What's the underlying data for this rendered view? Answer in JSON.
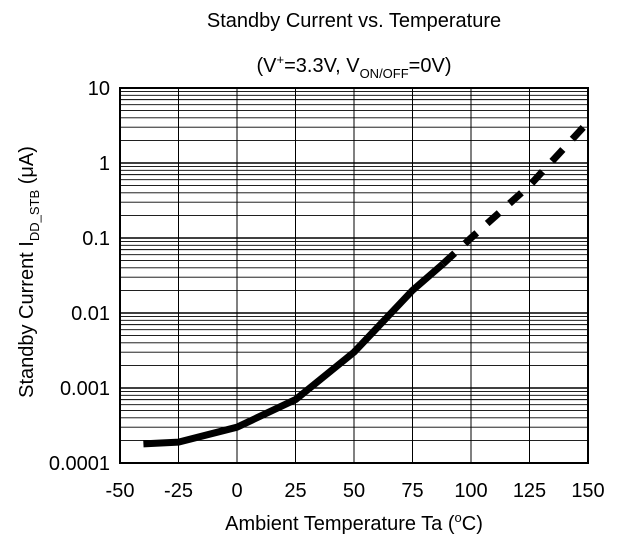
{
  "chart_data": {
    "type": "line",
    "title": "Standby Current vs. Temperature",
    "subtitle_parts": [
      "(V",
      "+",
      "=3.3V, V",
      "ON/OFF",
      "=0V)"
    ],
    "xlabel_parts": [
      "Ambient Temperature Ta  (",
      "o",
      "C)"
    ],
    "ylabel_parts": [
      "Standby Current  I",
      "DD_STB",
      "  (μA)"
    ],
    "x_ticks": [
      "-50",
      "-25",
      "0",
      "25",
      "50",
      "75",
      "100",
      "125",
      "150"
    ],
    "y_ticks": [
      "0.0001",
      "0.001",
      "0.01",
      "0.1",
      "1",
      "10"
    ],
    "xlim": [
      -50,
      150
    ],
    "ylim": [
      0.0001,
      10
    ],
    "yscale": "log",
    "grid": true,
    "series": [
      {
        "style": "solid",
        "x": [
          -40,
          -25,
          0,
          25,
          50,
          75,
          88
        ],
        "y": [
          0.00018,
          0.00019,
          0.0003,
          0.0007,
          0.003,
          0.02,
          0.045
        ]
      },
      {
        "style": "dashed",
        "x": [
          88,
          100,
          125,
          150
        ],
        "y": [
          0.045,
          0.1,
          0.5,
          3.5
        ]
      }
    ]
  }
}
